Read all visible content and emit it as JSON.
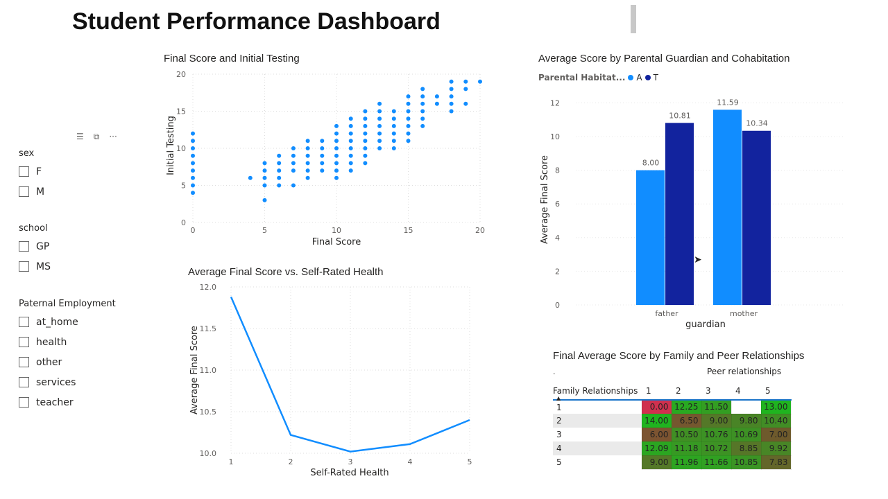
{
  "header": {
    "title": "Student Performance Dashboard"
  },
  "slicers": [
    {
      "title": "sex",
      "options": [
        "F",
        "M"
      ]
    },
    {
      "title": "school",
      "options": [
        "GP",
        "MS"
      ]
    },
    {
      "title": "Paternal Employment",
      "options": [
        "at_home",
        "health",
        "other",
        "services",
        "teacher"
      ]
    }
  ],
  "visual_header_icons": [
    "filter-icon",
    "focus-mode-icon",
    "more-options-icon"
  ],
  "chart_data": [
    {
      "type": "scatter",
      "title": "Final Score and Initial Testing",
      "xlabel": "Final Score",
      "ylabel": "Initial Testing",
      "xlim": [
        0,
        20
      ],
      "ylim": [
        0,
        20
      ],
      "xticks": [
        "0",
        "5",
        "10",
        "15",
        "20"
      ],
      "yticks": [
        "0",
        "5",
        "10",
        "15",
        "20"
      ],
      "grid": true,
      "color": "#118DFF",
      "points_by_x": {
        "0": [
          4,
          5,
          6,
          7,
          8,
          9,
          10,
          11,
          12
        ],
        "4": [
          6
        ],
        "5": [
          3,
          5,
          6,
          7,
          8
        ],
        "6": [
          5,
          6,
          7,
          8,
          9
        ],
        "7": [
          5,
          7,
          8,
          9,
          10
        ],
        "8": [
          6,
          7,
          8,
          9,
          10,
          11
        ],
        "9": [
          7,
          8,
          9,
          10,
          11
        ],
        "10": [
          6,
          7,
          8,
          9,
          10,
          11,
          12,
          13
        ],
        "11": [
          7,
          8,
          9,
          10,
          11,
          12,
          13,
          14
        ],
        "12": [
          8,
          9,
          10,
          11,
          12,
          13,
          14,
          15
        ],
        "13": [
          10,
          11,
          12,
          13,
          14,
          15,
          16
        ],
        "14": [
          10,
          11,
          12,
          13,
          14,
          15
        ],
        "15": [
          11,
          12,
          13,
          14,
          15,
          16,
          17
        ],
        "16": [
          13,
          14,
          15,
          16,
          17,
          18
        ],
        "17": [
          16,
          17
        ],
        "18": [
          15,
          16,
          17,
          18,
          19
        ],
        "19": [
          16,
          18,
          19
        ],
        "20": [
          19
        ]
      }
    },
    {
      "type": "line",
      "title": "Average Final Score vs. Self-Rated Health",
      "xlabel": "Self-Rated Health",
      "ylabel": "Average Final Score",
      "x": [
        1,
        2,
        3,
        4,
        5
      ],
      "y": [
        11.88,
        10.22,
        10.02,
        10.11,
        10.4
      ],
      "ylim": [
        10.0,
        12.0
      ],
      "yticks": [
        "10.0",
        "10.5",
        "11.0",
        "11.5",
        "12.0"
      ],
      "xticks": [
        "1",
        "2",
        "3",
        "4",
        "5"
      ],
      "grid": true,
      "color": "#118DFF"
    },
    {
      "type": "bar",
      "title": "Average Score by Parental Guardian and Cohabitation",
      "legend_title": "Parental Habitat...",
      "legend_position": "top-left",
      "xlabel": "guardian",
      "ylabel": "Average Final Score",
      "categories": [
        "father",
        "mother"
      ],
      "ylim": [
        0,
        12
      ],
      "yticks": [
        "0",
        "2",
        "4",
        "6",
        "8",
        "10",
        "12"
      ],
      "series": [
        {
          "name": "A",
          "values": [
            8.0,
            11.59
          ],
          "labels": [
            "8.00",
            "11.59"
          ],
          "color": "#118DFF"
        },
        {
          "name": "T",
          "values": [
            10.81,
            10.34
          ],
          "labels": [
            "10.81",
            "10.34"
          ],
          "color": "#12239E"
        }
      ]
    },
    {
      "type": "table",
      "title": "Final Average Score by Family and Peer Relationships",
      "subtitle": ".",
      "column_group": "Peer relationships",
      "row_header": "Family Relationships",
      "columns": [
        "1",
        "2",
        "3",
        "4",
        "5"
      ],
      "rows": [
        "1",
        "2",
        "3",
        "4",
        "5"
      ],
      "values": [
        [
          "0.00",
          "12.25",
          "11.50",
          "",
          "13.00"
        ],
        [
          "14.00",
          "6.50",
          "9.00",
          "9.80",
          "10.40"
        ],
        [
          "6.00",
          "10.50",
          "10.76",
          "10.69",
          "7.00"
        ],
        [
          "12.09",
          "11.18",
          "10.72",
          "8.85",
          "9.92"
        ],
        [
          "9.00",
          "11.96",
          "11.66",
          "10.85",
          "7.83"
        ]
      ],
      "color_scale": {
        "low": "#D0304F",
        "mid": "#6E5A2C",
        "high": "#1FB41F"
      }
    }
  ]
}
